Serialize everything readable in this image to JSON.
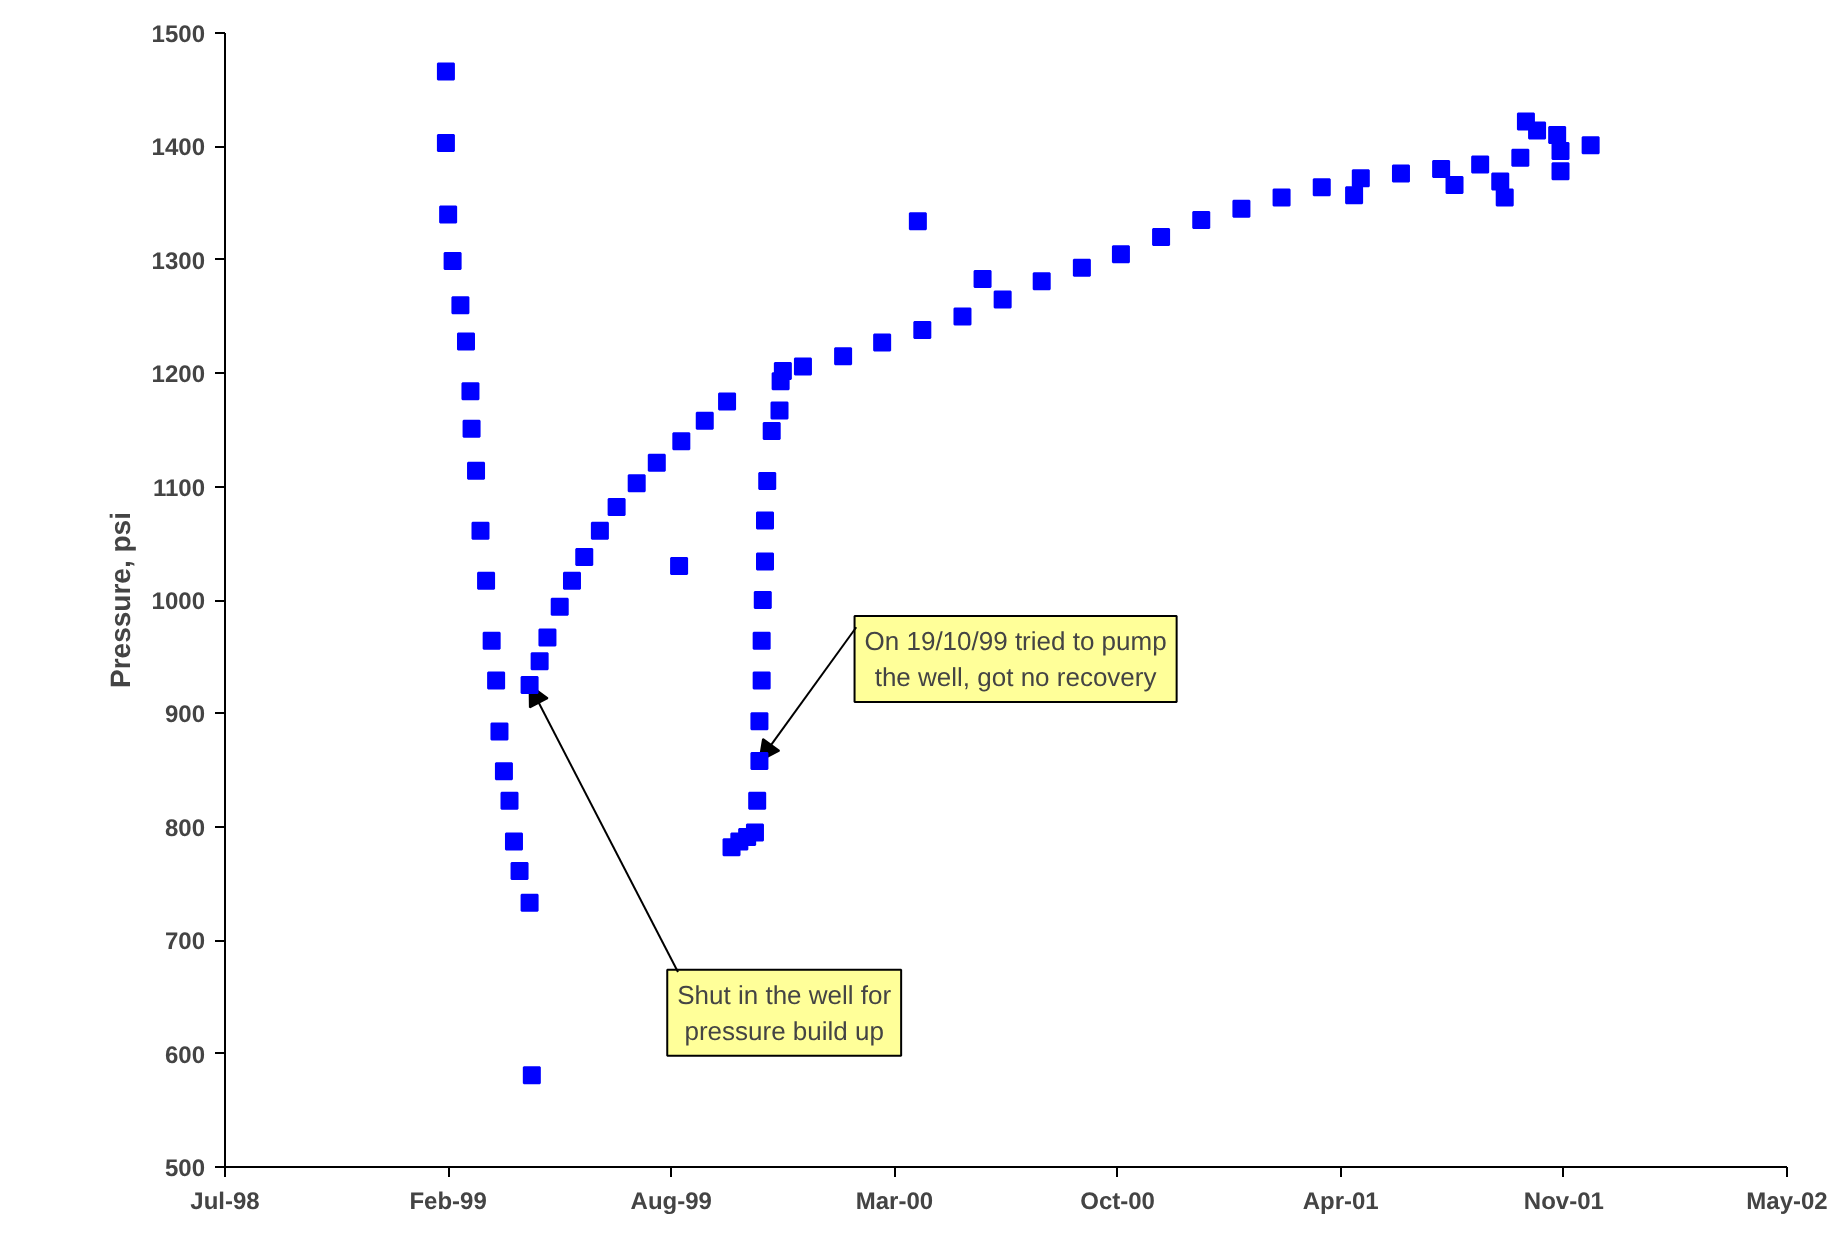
{
  "chart_data": {
    "type": "scatter",
    "ylabel": "Pressure, psi",
    "marker": "square",
    "grid": false,
    "xlim": [
      "1998-07-25",
      "2002-05-25"
    ],
    "xticks": [
      {
        "value": "1998-07-25",
        "label": "Jul-98"
      },
      {
        "value": "1999-02-10",
        "label": "Feb-99"
      },
      {
        "value": "1999-08-29",
        "label": "Aug-99"
      },
      {
        "value": "2000-03-16",
        "label": "Mar-00"
      },
      {
        "value": "2000-10-02",
        "label": "Oct-00"
      },
      {
        "value": "2001-04-20",
        "label": "Apr-01"
      },
      {
        "value": "2001-11-06",
        "label": "Nov-01"
      },
      {
        "value": "2002-05-25",
        "label": "May-02"
      }
    ],
    "ylim": [
      500,
      1500
    ],
    "yticks": [
      500,
      600,
      700,
      800,
      900,
      1000,
      1100,
      1200,
      1300,
      1400,
      1500
    ],
    "series": [
      {
        "color": "#0000ff",
        "x": [
          "1999-02-08",
          "1999-02-08",
          "1999-02-10",
          "1999-02-14",
          "1999-02-21",
          "1999-02-26",
          "1999-03-02",
          "1999-03-03",
          "1999-03-07",
          "1999-03-11",
          "1999-03-16",
          "1999-03-21",
          "1999-03-25",
          "1999-03-28",
          "1999-04-01",
          "1999-04-06",
          "1999-04-10",
          "1999-04-15",
          "1999-04-24",
          "1999-04-26",
          "1999-04-24",
          "1999-05-03",
          "1999-05-10",
          "1999-05-21",
          "1999-06-01",
          "1999-06-12",
          "1999-06-26",
          "1999-07-11",
          "1999-07-29",
          "1999-08-16",
          "1999-09-05",
          "1999-09-07",
          "1999-09-28",
          "1999-10-18",
          "1999-10-22",
          "1999-10-29",
          "1999-11-05",
          "1999-11-12",
          "1999-11-14",
          "1999-11-16",
          "1999-11-16",
          "1999-11-18",
          "1999-11-18",
          "1999-11-19",
          "1999-11-21",
          "1999-11-21",
          "1999-11-23",
          "1999-11-27",
          "1999-12-04",
          "1999-12-05",
          "1999-12-07",
          "1999-12-25",
          "2000-01-30",
          "2000-03-05",
          "2000-04-06",
          "2000-04-10",
          "2000-05-16",
          "2000-06-03",
          "2000-06-21",
          "2000-07-26",
          "2000-08-31",
          "2000-10-05",
          "2000-11-10",
          "2000-12-16",
          "2001-01-21",
          "2001-02-26",
          "2001-04-03",
          "2001-05-02",
          "2001-05-08",
          "2001-06-13",
          "2001-07-19",
          "2001-07-31",
          "2001-08-23",
          "2001-09-10",
          "2001-09-14",
          "2001-09-28",
          "2001-10-03",
          "2001-10-13",
          "2001-10-31",
          "2001-11-03",
          "2001-11-03",
          "2001-11-30"
        ],
        "values": [
          1466,
          1403,
          1340,
          1299,
          1260,
          1228,
          1184,
          1151,
          1114,
          1061,
          1017,
          964,
          929,
          884,
          849,
          823,
          787,
          761,
          733,
          581,
          925,
          946,
          967,
          994,
          1017,
          1038,
          1061,
          1082,
          1103,
          1121,
          1030,
          1140,
          1158,
          1175,
          782,
          787,
          791,
          795,
          823,
          858,
          893,
          929,
          964,
          1000,
          1034,
          1070,
          1105,
          1149,
          1167,
          1193,
          1202,
          1206,
          1215,
          1227,
          1334,
          1238,
          1250,
          1283,
          1265,
          1281,
          1293,
          1305,
          1320,
          1335,
          1345,
          1355,
          1364,
          1357,
          1372,
          1376,
          1380,
          1366,
          1384,
          1369,
          1355,
          1390,
          1422,
          1414,
          1410,
          1396,
          1378,
          1401
        ]
      }
    ],
    "annotations": [
      {
        "text": "Shut in the well for\npressure build up",
        "x": "1999-04-24",
        "y": 925
      },
      {
        "text": "On 19/10/99 tried to pump\nthe well, got no recovery",
        "x": "1999-11-16",
        "y": 858
      }
    ]
  }
}
